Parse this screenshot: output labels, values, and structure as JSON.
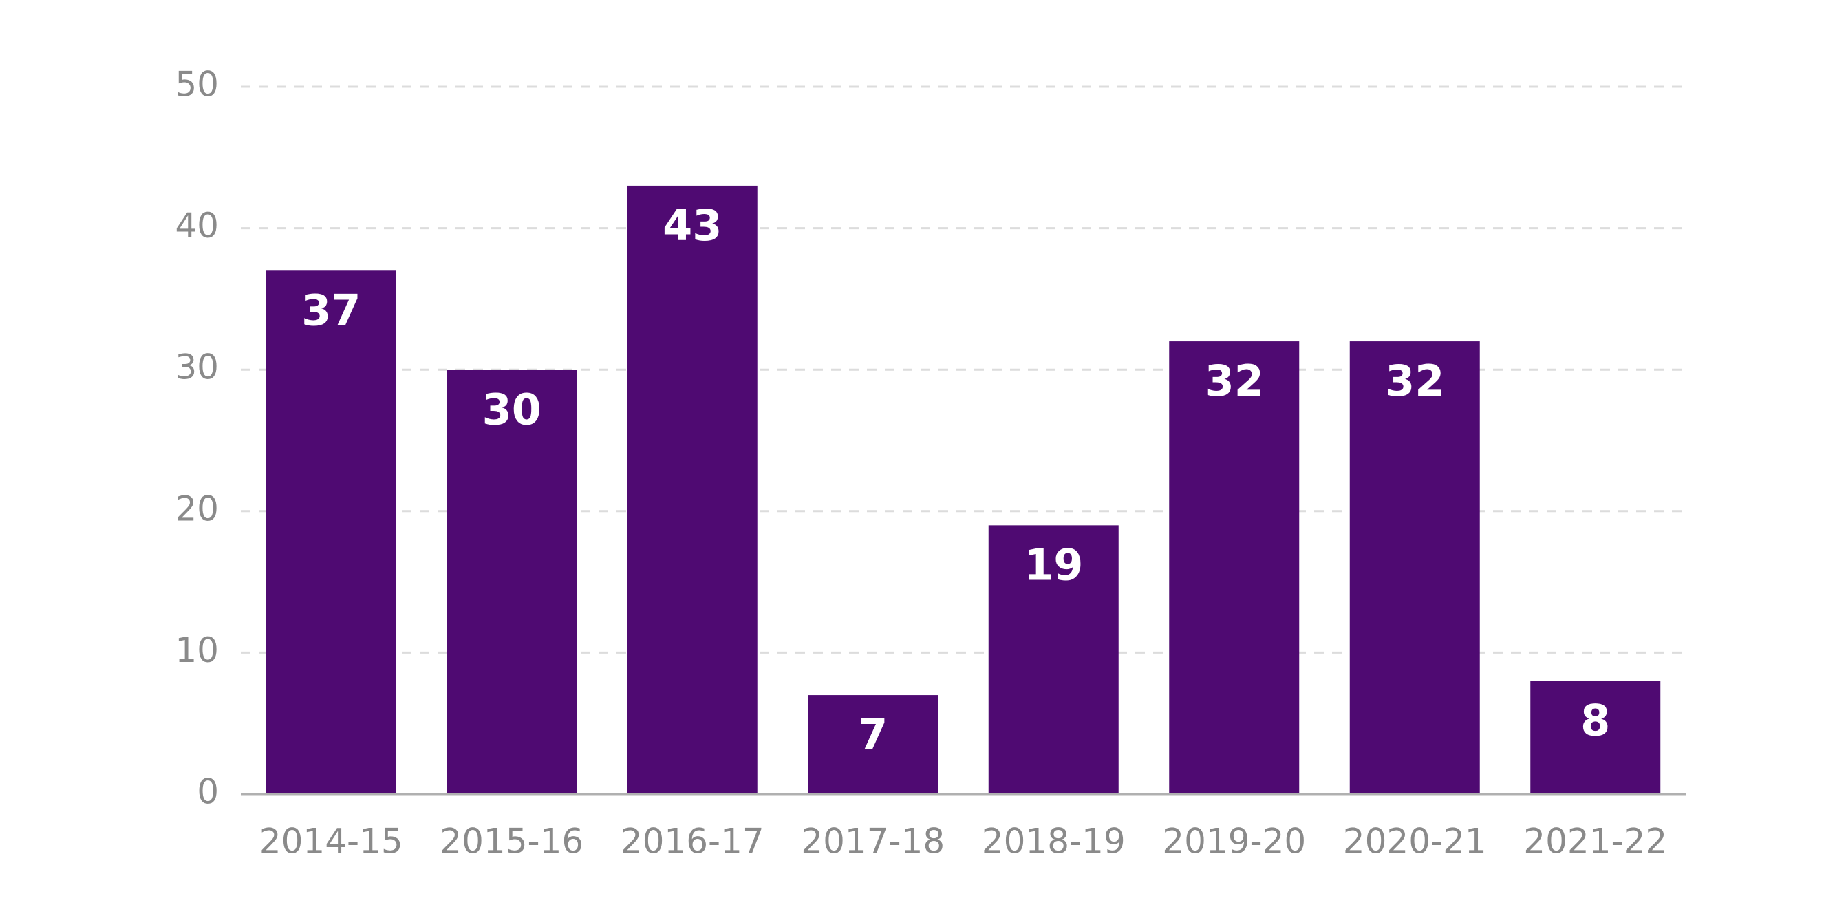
{
  "chart_data": {
    "type": "bar",
    "categories": [
      "2014-15",
      "2015-16",
      "2016-17",
      "2017-18",
      "2018-19",
      "2019-20",
      "2020-21",
      "2021-22"
    ],
    "values": [
      37,
      30,
      43,
      7,
      19,
      32,
      32,
      8
    ],
    "color": "#4f0a72",
    "ylim": [
      0,
      50
    ],
    "yticks": [
      0,
      10,
      20,
      30,
      40,
      50
    ],
    "grid": true
  }
}
